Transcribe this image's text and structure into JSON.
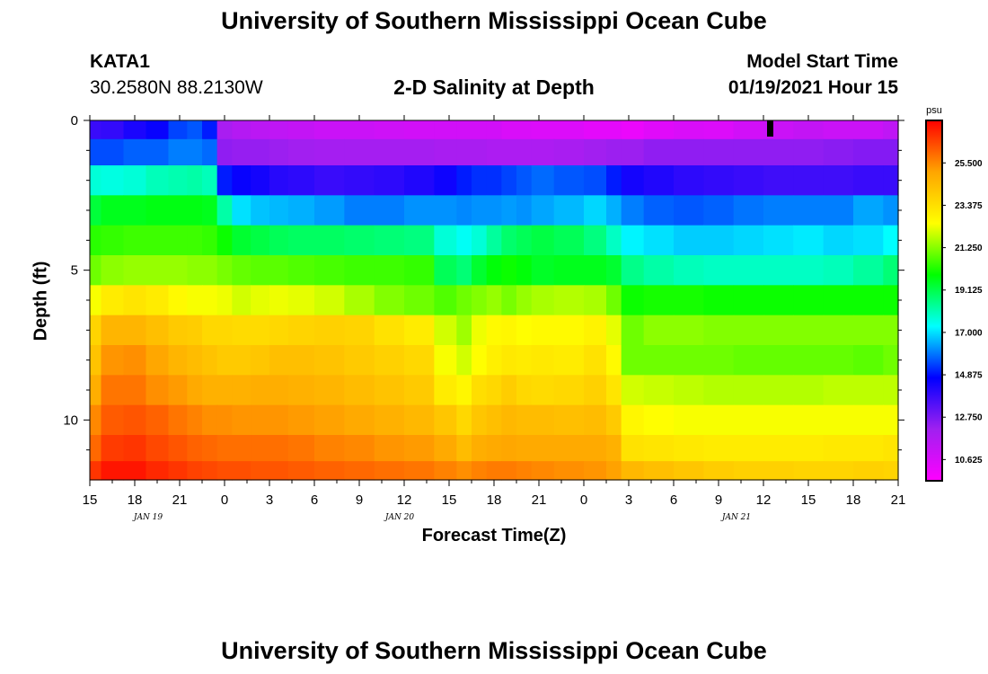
{
  "header": {
    "title": "University of Southern Mississippi Ocean Cube",
    "station_id": "KATA1",
    "station_coords": "30.2580N 88.2130W",
    "subtitle": "2-D Salinity at Depth",
    "model_start_label": "Model Start Time",
    "model_start_value": "01/19/2021 Hour 15"
  },
  "footer": {
    "title": "University of Southern Mississippi Ocean Cube"
  },
  "chart_data": {
    "type": "heatmap",
    "title": "2-D Salinity at Depth",
    "xlabel": "Forecast Time(Z)",
    "ylabel": "Depth (ft)",
    "x_tick_labels": [
      "15",
      "18",
      "21",
      "0",
      "3",
      "6",
      "9",
      "12",
      "15",
      "18",
      "21",
      "0",
      "3",
      "6",
      "9",
      "12",
      "15",
      "18",
      "21"
    ],
    "x_date_labels": [
      {
        "label": "JAN  19",
        "tick_index": 1.3
      },
      {
        "label": "JAN  20",
        "tick_index": 6.9
      },
      {
        "label": "JAN  21",
        "tick_index": 14.4
      }
    ],
    "x_range_hours": [
      0,
      54
    ],
    "y_tick_labels": [
      "0",
      "5",
      "10"
    ],
    "y_tick_values": [
      0,
      5,
      10
    ],
    "ylim": [
      0,
      12
    ],
    "colorbar": {
      "unit": "psu",
      "min": 9.56,
      "max": 27.63,
      "tick_labels": [
        "10.625",
        "12.750",
        "14.875",
        "17.000",
        "19.125",
        "21.250",
        "23.375",
        "25.500"
      ],
      "tick_values": [
        10.625,
        12.75,
        14.875,
        17.0,
        19.125,
        21.25,
        23.375,
        25.5
      ],
      "colors": [
        "#ff00ff",
        "#a020f0",
        "#0000ff",
        "#00ffff",
        "#00ff00",
        "#ffff00",
        "#ffa500",
        "#ff0000"
      ]
    },
    "depth_layers_ft": [
      0.25,
      1.0,
      2.0,
      3.0,
      4.0,
      5.0,
      6.0,
      7.0,
      8.0,
      9.0,
      10.0,
      11.0,
      11.75
    ],
    "time_hours": [
      0,
      1.5,
      3,
      4.5,
      6,
      7,
      8,
      9,
      10,
      11.5,
      12.5,
      14,
      16,
      18,
      20,
      22,
      24,
      25,
      26,
      27,
      28,
      29,
      30,
      32,
      34,
      35,
      36,
      38,
      40,
      42,
      44,
      46,
      48,
      50,
      52,
      54
    ],
    "salinity_psu": [
      [
        13.8,
        13.9,
        14.3,
        14.6,
        15.4,
        15.6,
        15.0,
        11.9,
        11.6,
        11.4,
        11.3,
        11.2,
        11.0,
        11.0,
        10.9,
        10.8,
        10.8,
        10.8,
        10.8,
        10.8,
        10.6,
        10.6,
        10.5,
        10.5,
        10.3,
        10.3,
        10.1,
        10.4,
        10.6,
        10.5,
        10.8,
        11.0,
        11.2,
        11.0,
        11.0,
        11.3
      ],
      [
        15.5,
        15.5,
        15.7,
        15.7,
        16.0,
        16.0,
        15.8,
        12.4,
        12.3,
        12.3,
        12.2,
        12.1,
        12.0,
        12.0,
        12.0,
        12.0,
        11.9,
        11.9,
        11.9,
        11.8,
        11.8,
        11.8,
        11.8,
        11.9,
        12.1,
        12.2,
        12.2,
        12.4,
        12.4,
        12.4,
        12.4,
        12.4,
        12.4,
        12.5,
        12.6,
        12.6
      ],
      [
        17.7,
        17.6,
        17.7,
        18.0,
        18.1,
        18.2,
        18.0,
        15.0,
        14.6,
        14.4,
        14.1,
        14.0,
        13.8,
        13.9,
        14.0,
        14.2,
        14.5,
        15.0,
        15.2,
        15.2,
        15.4,
        15.6,
        15.8,
        15.6,
        15.5,
        15.0,
        14.4,
        14.2,
        14.0,
        13.9,
        13.8,
        13.7,
        13.7,
        13.7,
        13.8,
        13.8
      ],
      [
        19.3,
        19.6,
        19.6,
        19.7,
        19.7,
        19.7,
        19.6,
        18.2,
        17.0,
        16.7,
        16.6,
        16.5,
        16.3,
        16.0,
        16.0,
        16.2,
        16.2,
        16.1,
        16.2,
        16.2,
        16.3,
        16.2,
        16.4,
        16.6,
        16.9,
        16.5,
        16.0,
        15.7,
        15.6,
        15.7,
        15.9,
        16.0,
        16.0,
        16.0,
        16.4,
        16.2
      ],
      [
        20.3,
        20.4,
        20.5,
        20.5,
        20.5,
        20.5,
        20.4,
        20.0,
        19.4,
        19.2,
        19.0,
        18.9,
        18.9,
        18.8,
        18.7,
        18.6,
        17.7,
        17.4,
        17.7,
        18.3,
        18.8,
        19.0,
        19.2,
        19.0,
        18.6,
        17.9,
        17.2,
        17.0,
        16.8,
        16.8,
        16.9,
        17.0,
        17.1,
        16.9,
        17.0,
        17.3
      ],
      [
        21.0,
        21.3,
        21.4,
        21.4,
        21.4,
        21.3,
        21.3,
        21.1,
        20.9,
        20.8,
        20.8,
        20.7,
        20.6,
        20.5,
        20.5,
        20.4,
        19.0,
        18.7,
        19.4,
        19.8,
        20.0,
        19.8,
        19.5,
        19.6,
        19.6,
        19.4,
        18.5,
        18.2,
        18.0,
        17.9,
        17.9,
        17.9,
        17.9,
        18.0,
        18.3,
        18.7
      ],
      [
        22.4,
        23.0,
        23.2,
        23.0,
        22.6,
        22.4,
        22.4,
        22.3,
        22.0,
        22.2,
        22.3,
        22.2,
        22.0,
        21.6,
        21.2,
        21.0,
        20.7,
        21.0,
        21.2,
        21.4,
        21.1,
        21.4,
        21.6,
        21.7,
        21.6,
        21.0,
        20.0,
        20.1,
        20.1,
        20.0,
        20.0,
        20.0,
        20.0,
        20.0,
        20.0,
        20.0
      ],
      [
        23.7,
        24.6,
        24.6,
        24.3,
        24.0,
        23.9,
        23.6,
        23.6,
        23.5,
        23.5,
        23.6,
        23.7,
        23.8,
        23.7,
        23.3,
        23.0,
        22.0,
        21.5,
        22.3,
        22.6,
        22.7,
        22.5,
        22.6,
        22.6,
        22.8,
        22.2,
        21.0,
        21.3,
        21.3,
        21.2,
        21.2,
        21.2,
        21.2,
        21.2,
        21.2,
        21.2
      ],
      [
        24.2,
        25.3,
        25.4,
        25.0,
        24.6,
        24.4,
        24.2,
        24.0,
        24.0,
        24.1,
        24.3,
        24.3,
        24.2,
        24.0,
        23.8,
        23.6,
        22.4,
        22.0,
        22.5,
        22.9,
        23.1,
        23.0,
        23.1,
        23.0,
        23.3,
        22.6,
        21.0,
        21.0,
        21.0,
        21.0,
        20.9,
        20.9,
        20.9,
        20.9,
        20.8,
        21.0
      ],
      [
        24.8,
        25.8,
        25.8,
        25.4,
        25.2,
        24.9,
        24.7,
        24.7,
        24.7,
        24.8,
        24.8,
        24.7,
        24.6,
        24.4,
        24.2,
        24.0,
        23.0,
        22.7,
        23.4,
        23.6,
        23.9,
        23.6,
        23.5,
        23.6,
        23.8,
        23.2,
        22.0,
        21.9,
        21.8,
        21.7,
        21.7,
        21.7,
        21.7,
        21.8,
        21.8,
        21.8
      ],
      [
        25.5,
        26.2,
        26.3,
        26.1,
        25.8,
        25.6,
        25.4,
        25.4,
        25.3,
        25.3,
        25.3,
        25.2,
        25.1,
        24.9,
        24.7,
        24.5,
        24.1,
        23.6,
        24.1,
        24.3,
        24.5,
        24.4,
        24.4,
        24.3,
        24.4,
        24.0,
        22.7,
        22.5,
        22.4,
        22.4,
        22.4,
        22.4,
        22.4,
        22.4,
        22.4,
        22.4
      ],
      [
        26.0,
        26.7,
        26.8,
        26.5,
        26.3,
        26.1,
        26.0,
        25.9,
        25.9,
        25.9,
        25.9,
        25.8,
        25.6,
        25.5,
        25.3,
        25.2,
        24.9,
        24.4,
        24.8,
        24.9,
        25.0,
        24.9,
        24.9,
        24.9,
        24.9,
        24.7,
        23.3,
        23.2,
        23.1,
        23.0,
        23.0,
        23.0,
        23.0,
        23.1,
        23.1,
        23.2
      ],
      [
        26.8,
        27.3,
        27.3,
        27.0,
        26.8,
        26.6,
        26.5,
        26.4,
        26.4,
        26.3,
        26.3,
        26.2,
        26.1,
        26.0,
        25.9,
        25.8,
        25.6,
        25.4,
        25.6,
        25.7,
        25.7,
        25.6,
        25.5,
        25.4,
        25.3,
        25.1,
        24.5,
        24.3,
        24.1,
        23.9,
        23.8,
        23.8,
        23.7,
        23.7,
        23.8,
        23.7
      ]
    ]
  }
}
